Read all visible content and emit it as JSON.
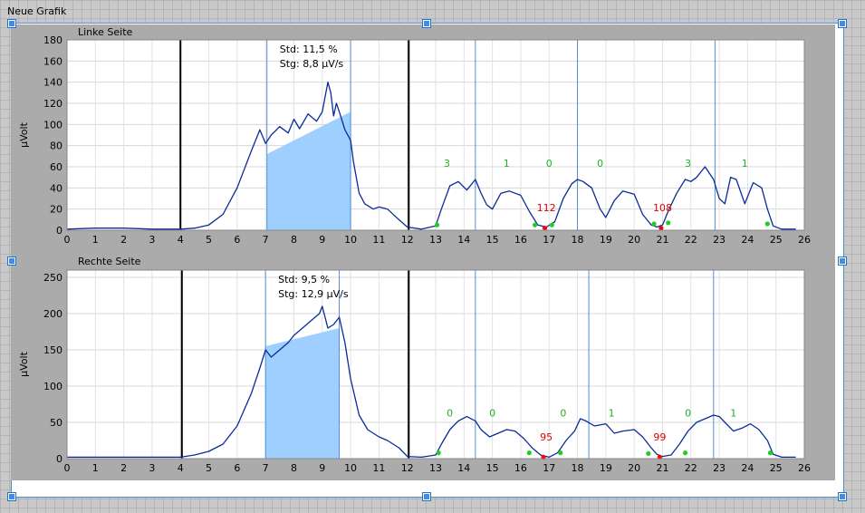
{
  "window": {
    "title": "Neue Grafik"
  },
  "colors": {
    "trace": "#0b2b9a",
    "fill": "#99ccff",
    "count_label": "#22b022",
    "min_label": "#dd0000",
    "divider": "#000000",
    "marker_line": "#4d8fd6"
  },
  "chart_data": [
    {
      "type": "line",
      "title": "Linke Seite",
      "ylabel": "µVolt",
      "xlabel": "",
      "xlim": [
        0,
        26
      ],
      "ylim": [
        0,
        180
      ],
      "xticks": [
        "0",
        "1",
        "2",
        "3",
        "4",
        "5",
        "6",
        "7",
        "8",
        "9",
        "10",
        "11",
        "12",
        "13",
        "14",
        "15",
        "16",
        "17",
        "18",
        "19",
        "20",
        "21",
        "22",
        "23",
        "24",
        "25",
        "26"
      ],
      "yticks": [
        "0",
        "20",
        "40",
        "60",
        "80",
        "100",
        "120",
        "140",
        "160",
        "180"
      ],
      "grid": true,
      "stats": {
        "std": "Std: 11,5 %",
        "stg": "Stg: 8,8 µV/s"
      },
      "dividers": [
        4.0,
        12.05
      ],
      "marker_lines": [
        7.05,
        10.0,
        14.4,
        18.0,
        22.85
      ],
      "highlight": {
        "x_start": 7.05,
        "x_end": 10.0,
        "y_start": 72,
        "y_end": 112
      },
      "series": [
        {
          "x": [
            0,
            1,
            2,
            3,
            4,
            4.5,
            5,
            5.5,
            6,
            6.5,
            6.8,
            7.0,
            7.2,
            7.5,
            7.8,
            8.0,
            8.2,
            8.5,
            8.8,
            9.0,
            9.2,
            9.3,
            9.4,
            9.5,
            9.6,
            9.8,
            10.0,
            10.1,
            10.3,
            10.5,
            10.8,
            11.0,
            11.3,
            11.7,
            12.0,
            12.5,
            13.0,
            13.2,
            13.5,
            13.8,
            14.1,
            14.4,
            14.6,
            14.8,
            15.0,
            15.3,
            15.6,
            16.0,
            16.3,
            16.6,
            16.9,
            17.2,
            17.5,
            17.8,
            18.0,
            18.2,
            18.5,
            18.8,
            19.0,
            19.3,
            19.6,
            20.0,
            20.3,
            20.6,
            20.8,
            21.0,
            21.2,
            21.5,
            21.8,
            22.0,
            22.2,
            22.5,
            22.8,
            23.0,
            23.2,
            23.4,
            23.6,
            23.9,
            24.2,
            24.5,
            24.7,
            24.9,
            25.2,
            25.7
          ],
          "values": [
            1,
            2,
            2,
            1,
            1,
            2,
            5,
            15,
            40,
            75,
            95,
            82,
            90,
            98,
            92,
            105,
            96,
            110,
            103,
            112,
            140,
            130,
            108,
            120,
            112,
            95,
            85,
            65,
            35,
            25,
            20,
            22,
            20,
            10,
            3,
            1,
            4,
            20,
            42,
            46,
            38,
            48,
            35,
            24,
            20,
            35,
            37,
            33,
            18,
            5,
            3,
            8,
            30,
            44,
            48,
            46,
            40,
            20,
            12,
            28,
            37,
            34,
            15,
            5,
            3,
            5,
            18,
            35,
            48,
            46,
            50,
            60,
            48,
            30,
            25,
            50,
            48,
            25,
            45,
            40,
            20,
            4,
            1,
            1
          ]
        }
      ],
      "annotations": [
        {
          "x": 13.4,
          "y": 60,
          "text": "3",
          "kind": "count"
        },
        {
          "x": 15.5,
          "y": 60,
          "text": "1",
          "kind": "count"
        },
        {
          "x": 17.0,
          "y": 60,
          "text": "0",
          "kind": "count"
        },
        {
          "x": 18.8,
          "y": 60,
          "text": "0",
          "kind": "count"
        },
        {
          "x": 21.9,
          "y": 60,
          "text": "3",
          "kind": "count"
        },
        {
          "x": 23.9,
          "y": 60,
          "text": "1",
          "kind": "count"
        },
        {
          "x": 16.9,
          "y": 18,
          "text": "112",
          "kind": "min"
        },
        {
          "x": 21.0,
          "y": 18,
          "text": "108",
          "kind": "min"
        }
      ],
      "markers": [
        {
          "x": 13.05,
          "y": 5,
          "kind": "green"
        },
        {
          "x": 16.5,
          "y": 5,
          "kind": "green"
        },
        {
          "x": 17.1,
          "y": 5,
          "kind": "green"
        },
        {
          "x": 20.7,
          "y": 6,
          "kind": "green"
        },
        {
          "x": 21.2,
          "y": 7,
          "kind": "green"
        },
        {
          "x": 24.7,
          "y": 6,
          "kind": "green"
        },
        {
          "x": 16.85,
          "y": 2,
          "kind": "red"
        },
        {
          "x": 20.95,
          "y": 2,
          "kind": "red"
        }
      ]
    },
    {
      "type": "line",
      "title": "Rechte Seite",
      "ylabel": "µVolt",
      "xlabel": "",
      "xlim": [
        0,
        26
      ],
      "ylim": [
        0,
        260
      ],
      "xticks": [
        "0",
        "1",
        "2",
        "3",
        "4",
        "5",
        "6",
        "7",
        "8",
        "9",
        "10",
        "11",
        "12",
        "13",
        "14",
        "15",
        "16",
        "17",
        "18",
        "19",
        "20",
        "21",
        "22",
        "23",
        "24",
        "25",
        "26"
      ],
      "yticks": [
        "0",
        "50",
        "100",
        "150",
        "200",
        "250"
      ],
      "grid": true,
      "stats": {
        "std": "Std: 9,5 %",
        "stg": "Stg: 12,9 µV/s"
      },
      "dividers": [
        4.05,
        12.05
      ],
      "marker_lines": [
        7.0,
        9.6,
        14.4,
        18.4,
        22.8
      ],
      "highlight": {
        "x_start": 7.0,
        "x_end": 9.6,
        "y_start": 155,
        "y_end": 180
      },
      "series": [
        {
          "x": [
            0,
            1,
            2,
            3,
            4,
            4.5,
            5,
            5.5,
            6,
            6.5,
            6.8,
            7.0,
            7.2,
            7.5,
            7.8,
            8.0,
            8.3,
            8.6,
            8.9,
            9.0,
            9.2,
            9.4,
            9.6,
            9.8,
            10.0,
            10.3,
            10.6,
            11.0,
            11.3,
            11.7,
            12.0,
            12.5,
            13.0,
            13.2,
            13.5,
            13.8,
            14.1,
            14.4,
            14.6,
            14.9,
            15.2,
            15.5,
            15.8,
            16.1,
            16.4,
            16.7,
            17.0,
            17.3,
            17.6,
            17.9,
            18.1,
            18.3,
            18.6,
            19.0,
            19.3,
            19.6,
            20.0,
            20.3,
            20.6,
            20.8,
            21.0,
            21.3,
            21.6,
            21.9,
            22.2,
            22.5,
            22.8,
            23.0,
            23.2,
            23.5,
            23.8,
            24.1,
            24.4,
            24.7,
            24.9,
            25.2,
            25.7
          ],
          "values": [
            2,
            2,
            2,
            2,
            2,
            5,
            10,
            20,
            45,
            90,
            125,
            150,
            140,
            150,
            160,
            170,
            180,
            190,
            200,
            210,
            180,
            185,
            195,
            160,
            110,
            60,
            40,
            30,
            25,
            15,
            3,
            2,
            5,
            20,
            40,
            52,
            58,
            52,
            40,
            30,
            35,
            40,
            38,
            28,
            15,
            5,
            2,
            8,
            25,
            38,
            55,
            52,
            45,
            48,
            35,
            38,
            40,
            30,
            15,
            6,
            3,
            5,
            20,
            38,
            50,
            55,
            60,
            58,
            50,
            38,
            42,
            48,
            40,
            25,
            6,
            2,
            2
          ]
        }
      ],
      "annotations": [
        {
          "x": 13.5,
          "y": 58,
          "text": "0",
          "kind": "count"
        },
        {
          "x": 15.0,
          "y": 58,
          "text": "0",
          "kind": "count"
        },
        {
          "x": 17.5,
          "y": 58,
          "text": "0",
          "kind": "count"
        },
        {
          "x": 19.2,
          "y": 58,
          "text": "1",
          "kind": "count"
        },
        {
          "x": 21.9,
          "y": 58,
          "text": "0",
          "kind": "count"
        },
        {
          "x": 23.5,
          "y": 58,
          "text": "1",
          "kind": "count"
        },
        {
          "x": 16.9,
          "y": 25,
          "text": "95",
          "kind": "min"
        },
        {
          "x": 20.9,
          "y": 25,
          "text": "99",
          "kind": "min"
        }
      ],
      "markers": [
        {
          "x": 13.1,
          "y": 8,
          "kind": "green"
        },
        {
          "x": 16.3,
          "y": 8,
          "kind": "green"
        },
        {
          "x": 17.4,
          "y": 8,
          "kind": "green"
        },
        {
          "x": 20.5,
          "y": 7,
          "kind": "green"
        },
        {
          "x": 21.8,
          "y": 8,
          "kind": "green"
        },
        {
          "x": 24.8,
          "y": 8,
          "kind": "green"
        },
        {
          "x": 16.8,
          "y": 2,
          "kind": "red"
        },
        {
          "x": 20.9,
          "y": 2,
          "kind": "red"
        }
      ]
    }
  ]
}
